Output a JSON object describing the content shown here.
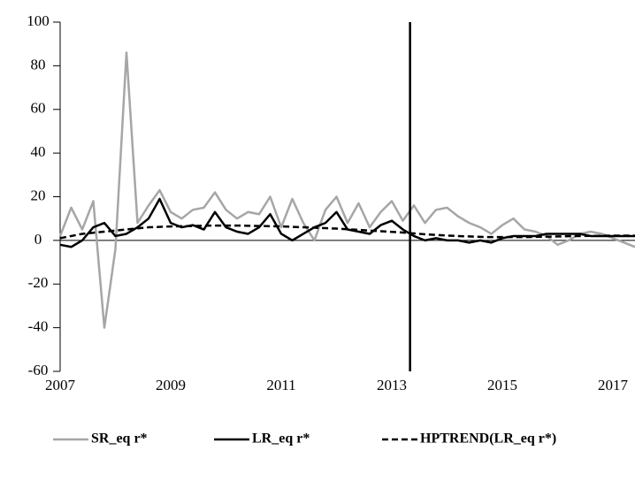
{
  "chart_data": {
    "type": "line",
    "x": [
      2007,
      2007.2,
      2007.4,
      2007.6,
      2007.8,
      2008,
      2008.2,
      2008.4,
      2008.6,
      2008.8,
      2009,
      2009.2,
      2009.4,
      2009.6,
      2009.8,
      2010,
      2010.2,
      2010.4,
      2010.6,
      2010.8,
      2011,
      2011.2,
      2011.4,
      2011.6,
      2011.8,
      2012,
      2012.2,
      2012.4,
      2012.6,
      2012.8,
      2013,
      2013.2,
      2013.4,
      2013.6,
      2013.8,
      2014,
      2014.2,
      2014.4,
      2014.6,
      2014.8,
      2015,
      2015.2,
      2015.4,
      2015.6,
      2015.8,
      2016,
      2016.2,
      2016.4,
      2016.6,
      2016.8,
      2017,
      2017.2,
      2017.4
    ],
    "series": [
      {
        "name": "SR_eq r*",
        "color": "#a6a6a6",
        "dash": false,
        "values": [
          2,
          15,
          5,
          18,
          -40,
          -4,
          86,
          8,
          16,
          23,
          13,
          10,
          14,
          15,
          22,
          14,
          10,
          13,
          12,
          20,
          6,
          19,
          8,
          0,
          14,
          20,
          8,
          17,
          6,
          13,
          18,
          9,
          16,
          8,
          14,
          15,
          11,
          8,
          6,
          3,
          7,
          10,
          5,
          4,
          2,
          -2,
          0,
          3,
          4,
          3,
          1,
          -1,
          -3
        ]
      },
      {
        "name": "LR_eq r*",
        "color": "#000000",
        "dash": false,
        "values": [
          -2,
          -3,
          0,
          6,
          8,
          2,
          3,
          6,
          10,
          19,
          8,
          6,
          7,
          5,
          13,
          6,
          4,
          3,
          6,
          12,
          3,
          0,
          3,
          6,
          8,
          13,
          5,
          4,
          3,
          7,
          9,
          5,
          2,
          0,
          1,
          0,
          0,
          -1,
          0,
          -1,
          1,
          2,
          2,
          2,
          3,
          3,
          3,
          3,
          2,
          2,
          2,
          2,
          2
        ]
      },
      {
        "name": "HPTREND(LR_eq r*)",
        "color": "#000000",
        "dash": true,
        "values": [
          1,
          2,
          3,
          3.5,
          4,
          4.5,
          5,
          5.5,
          6,
          6.2,
          6.4,
          6.5,
          6.6,
          6.7,
          6.8,
          6.8,
          6.8,
          6.7,
          6.6,
          6.5,
          6.4,
          6.2,
          6,
          5.8,
          5.6,
          5.4,
          5.1,
          4.8,
          4.5,
          4.2,
          3.9,
          3.6,
          3.2,
          2.8,
          2.5,
          2.2,
          2,
          1.8,
          1.6,
          1.5,
          1.5,
          1.5,
          1.5,
          1.6,
          1.7,
          1.8,
          1.9,
          2,
          2.1,
          2.1,
          2.2,
          2.2,
          2.2
        ]
      }
    ],
    "xlim": [
      2007,
      2017.4
    ],
    "xticks": [
      2007,
      2009,
      2011,
      2013,
      2015,
      2017
    ],
    "ylim": [
      -60,
      100
    ],
    "yticks": [
      -60,
      -40,
      -20,
      0,
      20,
      40,
      60,
      80,
      100
    ],
    "vline": 2013.33,
    "legend": "bottom"
  }
}
